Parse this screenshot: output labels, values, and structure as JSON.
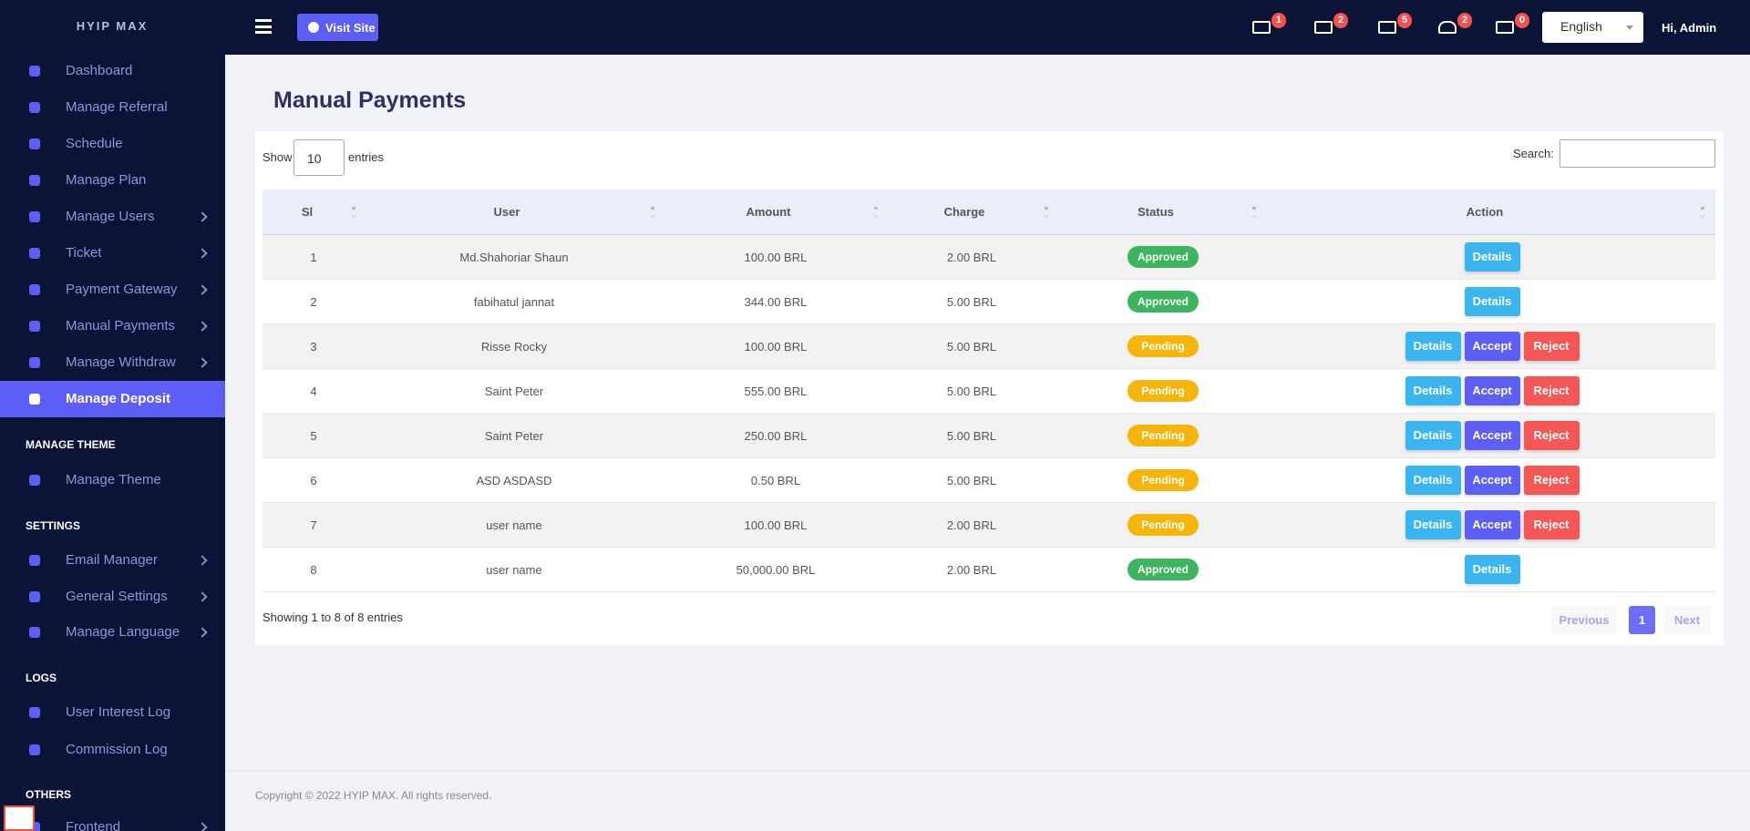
{
  "sidebar": {
    "brand": "HYIP MAX",
    "menu": [
      "Dashboard",
      "Manage Referral",
      "Schedule",
      "Manage Plan",
      "Manage Users",
      "Ticket",
      "Payment Gateway",
      "Manual Payments",
      "Manage Withdraw",
      "Manage Deposit"
    ],
    "sections": [
      {
        "heading": "MANAGE THEME",
        "items": [
          "Manage Theme"
        ]
      },
      {
        "heading": "SETTINGS",
        "items": [
          "Email Manager",
          "General Settings",
          "Manage Language"
        ]
      },
      {
        "heading": "LOGS",
        "items": [
          "User Interest Log",
          "Commission Log"
        ]
      },
      {
        "heading": "OTHERS",
        "items": [
          "Frontend"
        ]
      }
    ]
  },
  "header": {
    "visit_site": "Visit Site",
    "badges": [
      1,
      2,
      5,
      2,
      0
    ],
    "language": "English",
    "user": "Hi, Admin"
  },
  "page": {
    "title": "Manual Payments",
    "show": "Show",
    "entries_value": 10,
    "entries": "entries",
    "search": "Search:",
    "table": {
      "columns": [
        "Sl",
        "User",
        "Amount",
        "Charge",
        "Status",
        "Action"
      ],
      "rows": [
        [
          1,
          "Md.Shahoriar Shaun",
          "100.00 BRL",
          "2.00 BRL",
          "Approved",
          [
            "Details"
          ]
        ],
        [
          2,
          "fabihatul jannat",
          "344.00 BRL",
          "5.00 BRL",
          "Approved",
          [
            "Details"
          ]
        ],
        [
          3,
          "Risse Rocky",
          "100.00 BRL",
          "5.00 BRL",
          "Pending",
          [
            "Details",
            "Accept",
            "Reject"
          ]
        ],
        [
          4,
          "Saint Peter",
          "555.00 BRL",
          "5.00 BRL",
          "Pending",
          [
            "Details",
            "Accept",
            "Reject"
          ]
        ],
        [
          5,
          "Saint Peter",
          "250.00 BRL",
          "5.00 BRL",
          "Pending",
          [
            "Details",
            "Accept",
            "Reject"
          ]
        ],
        [
          6,
          "ASD ASDASD",
          "0.50 BRL",
          "5.00 BRL",
          "Pending",
          [
            "Details",
            "Accept",
            "Reject"
          ]
        ],
        [
          7,
          "user name",
          "100.00 BRL",
          "2.00 BRL",
          "Pending",
          [
            "Details",
            "Accept",
            "Reject"
          ]
        ],
        [
          8,
          "user name",
          "50,000.00 BRL",
          "2.00 BRL",
          "Approved",
          [
            "Details"
          ]
        ]
      ]
    },
    "info": "Showing 1 to 8 of 8 entries",
    "pagination": {
      "previous": "Previous",
      "current": 1,
      "next": "Next"
    }
  },
  "footer": "Copyright © 2022 HYIP MAX. All rights reserved."
}
